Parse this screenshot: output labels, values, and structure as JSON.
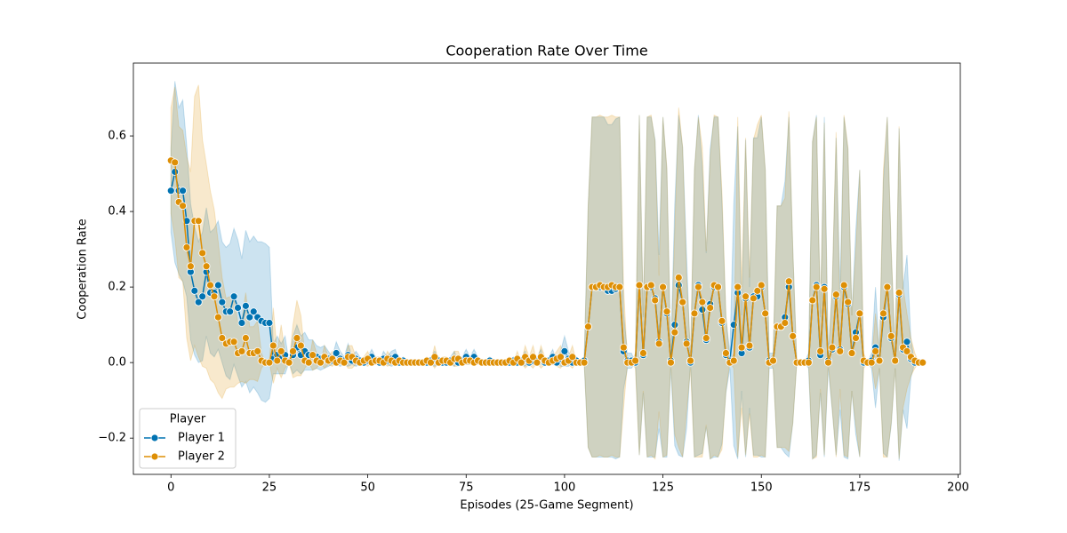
{
  "chart_data": {
    "type": "line",
    "title": "Cooperation Rate Over Time",
    "xlabel": "Episodes (25-Game Segment)",
    "ylabel": "Cooperation Rate",
    "legend_title": "Player",
    "legend": "lower left",
    "grid": false,
    "xlim": [
      -9.55,
      200.55
    ],
    "ylim": [
      -0.296,
      0.793
    ],
    "xticks": [
      0,
      25,
      50,
      75,
      100,
      125,
      150,
      175,
      200
    ],
    "yticks": [
      {
        "value": -0.2,
        "label": "−0.2"
      },
      {
        "value": 0,
        "label": "0.0"
      },
      0.2,
      0.4,
      0.6
    ],
    "x": [
      0,
      1,
      2,
      3,
      4,
      5,
      6,
      7,
      8,
      9,
      10,
      11,
      12,
      13,
      14,
      15,
      16,
      17,
      18,
      19,
      20,
      21,
      22,
      23,
      24,
      25,
      26,
      27,
      28,
      29,
      30,
      31,
      32,
      33,
      34,
      35,
      36,
      37,
      38,
      39,
      40,
      41,
      42,
      43,
      44,
      45,
      46,
      47,
      48,
      49,
      50,
      51,
      52,
      53,
      54,
      55,
      56,
      57,
      58,
      59,
      60,
      61,
      62,
      63,
      64,
      65,
      66,
      67,
      68,
      69,
      70,
      71,
      72,
      73,
      74,
      75,
      76,
      77,
      78,
      79,
      80,
      81,
      82,
      83,
      84,
      85,
      86,
      87,
      88,
      89,
      90,
      91,
      92,
      93,
      94,
      95,
      96,
      97,
      98,
      99,
      100,
      101,
      102,
      103,
      104,
      105,
      106,
      107,
      108,
      109,
      110,
      111,
      112,
      113,
      114,
      115,
      116,
      117,
      118,
      119,
      120,
      121,
      122,
      123,
      124,
      125,
      126,
      127,
      128,
      129,
      130,
      131,
      132,
      133,
      134,
      135,
      136,
      137,
      138,
      139,
      140,
      141,
      142,
      143,
      144,
      145,
      146,
      147,
      148,
      149,
      150,
      151,
      152,
      153,
      154,
      155,
      156,
      157,
      158,
      159,
      160,
      161,
      162,
      163,
      164,
      165,
      166,
      167,
      168,
      169,
      170,
      171,
      172,
      173,
      174,
      175,
      176,
      177,
      178,
      179,
      180,
      181,
      182,
      183,
      184,
      185,
      186,
      187,
      188,
      189,
      190,
      191
    ],
    "series": [
      {
        "name": "Player 1",
        "color": "#0173b2",
        "values": [
          0.455,
          0.505,
          0.455,
          0.455,
          0.375,
          0.24,
          0.19,
          0.16,
          0.175,
          0.24,
          0.185,
          0.185,
          0.205,
          0.16,
          0.135,
          0.135,
          0.175,
          0.145,
          0.105,
          0.15,
          0.12,
          0.135,
          0.12,
          0.11,
          0.105,
          0.105,
          0.01,
          0.02,
          0.01,
          0.02,
          0,
          0.02,
          0.04,
          0.02,
          0.03,
          0.02,
          0.02,
          0.015,
          0.01,
          0.015,
          0.01,
          0.005,
          0.025,
          0.01,
          0.005,
          0.02,
          0.005,
          0.01,
          0.005,
          0,
          0.005,
          0.015,
          0.005,
          0,
          0.01,
          0.005,
          0.01,
          0.015,
          0,
          0.005,
          0,
          0,
          0,
          0,
          0,
          0,
          0.005,
          0.01,
          0.005,
          0,
          0,
          0.005,
          0.01,
          0,
          0.005,
          0.015,
          0.005,
          0.015,
          0.005,
          0,
          0,
          0.005,
          0,
          0,
          0,
          0,
          0,
          0.005,
          0,
          0.005,
          0.01,
          0,
          0.005,
          0.005,
          0.015,
          0,
          0.005,
          0.015,
          0,
          0.01,
          0.03,
          0.01,
          0,
          0.005,
          0,
          0.005,
          0.095,
          0.2,
          0.2,
          0.2,
          0.2,
          0.19,
          0.19,
          0.195,
          0.2,
          0.03,
          0.005,
          0.005,
          0,
          0.205,
          0.02,
          0.2,
          0.2,
          0.17,
          0.055,
          0.2,
          0.13,
          0.005,
          0.1,
          0.205,
          0.16,
          0.055,
          0,
          0.13,
          0.205,
          0.14,
          0.06,
          0.155,
          0.2,
          0.2,
          0.105,
          0.02,
          0.005,
          0.1,
          0.185,
          0.025,
          0.17,
          0.04,
          0.175,
          0.175,
          0.2,
          0.13,
          0.005,
          0.005,
          0.095,
          0.095,
          0.12,
          0.2,
          0.07,
          0,
          0,
          0,
          0.005,
          0.165,
          0.205,
          0.02,
          0.2,
          0.005,
          0.035,
          0.175,
          0.035,
          0.2,
          0.155,
          0.025,
          0.08,
          0.13,
          0,
          0,
          0.005,
          0.04,
          0.005,
          0.12,
          0.2,
          0.065,
          0.005,
          0.18,
          0.035,
          0.055,
          0.01,
          0,
          0,
          0
        ],
        "errors": [
          0.11,
          0.24,
          0.22,
          0.24,
          0.2,
          0.18,
          0.17,
          0.16,
          0.17,
          0.17,
          0.16,
          0.17,
          0.17,
          0.16,
          0.17,
          0.18,
          0.18,
          0.18,
          0.17,
          0.2,
          0.2,
          0.2,
          0.2,
          0.21,
          0.21,
          0.2,
          0.04,
          0.05,
          0.04,
          0.05,
          0,
          0.05,
          0.06,
          0.05,
          0.05,
          0.04,
          0.04,
          0.03,
          0.03,
          0.03,
          0.02,
          0.01,
          0.03,
          0.02,
          0.01,
          0.03,
          0.01,
          0.02,
          0.01,
          0,
          0.01,
          0.02,
          0.01,
          0,
          0.02,
          0.01,
          0.02,
          0.02,
          0,
          0.01,
          0,
          0,
          0,
          0,
          0,
          0,
          0.01,
          0.02,
          0.01,
          0,
          0,
          0.01,
          0.02,
          0,
          0.01,
          0.02,
          0.01,
          0.02,
          0.01,
          0,
          0,
          0.01,
          0,
          0,
          0,
          0,
          0,
          0.01,
          0,
          0.01,
          0.02,
          0,
          0.01,
          0.01,
          0.02,
          0,
          0.01,
          0.02,
          0,
          0.02,
          0.04,
          0.02,
          0,
          0.01,
          0,
          0.01,
          0.32,
          0.45,
          0.45,
          0.45,
          0.45,
          0.44,
          0.44,
          0.45,
          0.45,
          0.1,
          0.02,
          0.02,
          0,
          0.45,
          0.1,
          0.45,
          0.45,
          0.42,
          0.23,
          0.45,
          0.38,
          0.02,
          0.32,
          0.45,
          0.41,
          0.23,
          0,
          0.38,
          0.45,
          0.38,
          0.23,
          0.41,
          0.45,
          0.45,
          0.32,
          0.1,
          0.02,
          0.32,
          0.44,
          0.1,
          0.42,
          0.16,
          0.42,
          0.42,
          0.45,
          0.38,
          0.02,
          0.02,
          0.32,
          0.32,
          0.36,
          0.45,
          0.23,
          0,
          0,
          0,
          0.02,
          0.42,
          0.45,
          0.1,
          0.45,
          0.02,
          0.16,
          0.42,
          0.16,
          0.45,
          0.41,
          0.1,
          0.27,
          0.38,
          0,
          0,
          0.02,
          0.16,
          0.02,
          0.36,
          0.45,
          0.23,
          0.02,
          0.44,
          0.16,
          0.23,
          0.05,
          0,
          0,
          0
        ]
      },
      {
        "name": "Player 2",
        "color": "#de8f05",
        "values": [
          0.535,
          0.53,
          0.425,
          0.415,
          0.305,
          0.255,
          0.375,
          0.375,
          0.29,
          0.255,
          0.205,
          0.175,
          0.12,
          0.065,
          0.05,
          0.055,
          0.055,
          0.025,
          0.03,
          0.065,
          0.025,
          0.025,
          0.03,
          0.005,
          0,
          0,
          0.045,
          0.005,
          0.03,
          0.005,
          0,
          0.03,
          0.065,
          0.045,
          0.005,
          0,
          0.02,
          0.005,
          0,
          0.015,
          0.005,
          0.01,
          0,
          0.005,
          0,
          0.015,
          0.015,
          0.005,
          0,
          0.005,
          0.01,
          0,
          0.005,
          0.005,
          0,
          0.01,
          0.005,
          0,
          0.005,
          0,
          0,
          0,
          0,
          0,
          0,
          0.005,
          0,
          0.015,
          0,
          0.005,
          0.005,
          0,
          0.01,
          0.01,
          0,
          0.005,
          0.005,
          0,
          0.005,
          0,
          0,
          0,
          0,
          0,
          0,
          0,
          0.005,
          0,
          0.01,
          0,
          0.015,
          0.005,
          0.015,
          0,
          0.015,
          0.005,
          0,
          0.005,
          0.01,
          0.015,
          0,
          0.005,
          0.015,
          0,
          0,
          0,
          0.095,
          0.2,
          0.2,
          0.205,
          0.2,
          0.2,
          0.205,
          0.2,
          0.2,
          0.04,
          0,
          0,
          0.005,
          0.205,
          0.025,
          0.2,
          0.205,
          0.165,
          0.05,
          0.2,
          0.135,
          0,
          0.08,
          0.225,
          0.16,
          0.05,
          0.005,
          0.13,
          0.2,
          0.16,
          0.065,
          0.145,
          0.205,
          0.2,
          0.11,
          0.025,
          0,
          0.005,
          0.2,
          0.04,
          0.175,
          0.045,
          0.17,
          0.19,
          0.205,
          0.13,
          0,
          0.005,
          0.095,
          0.095,
          0.105,
          0.215,
          0.07,
          0,
          0,
          0,
          0,
          0.165,
          0.2,
          0.03,
          0.195,
          0,
          0.04,
          0.18,
          0.03,
          0.205,
          0.16,
          0.025,
          0.065,
          0.13,
          0.005,
          0,
          0,
          0.03,
          0.005,
          0.13,
          0.2,
          0.07,
          0.005,
          0.185,
          0.04,
          0.03,
          0.015,
          0.005,
          0,
          0
        ],
        "errors": [
          0.14,
          0.2,
          0.2,
          0.2,
          0.24,
          0.25,
          0.33,
          0.36,
          0.3,
          0.27,
          0.25,
          0.23,
          0.2,
          0.16,
          0.12,
          0.12,
          0.12,
          0.08,
          0.08,
          0.12,
          0.07,
          0.07,
          0.08,
          0.02,
          0,
          0,
          0.1,
          0.02,
          0.07,
          0.02,
          0,
          0.07,
          0.1,
          0.08,
          0.02,
          0,
          0.04,
          0.02,
          0,
          0.03,
          0.01,
          0.02,
          0,
          0.01,
          0,
          0.03,
          0.03,
          0.01,
          0,
          0.01,
          0.02,
          0,
          0.01,
          0.01,
          0,
          0.02,
          0.01,
          0,
          0.01,
          0,
          0,
          0,
          0,
          0,
          0,
          0.01,
          0,
          0.03,
          0,
          0.01,
          0.01,
          0,
          0.02,
          0.02,
          0,
          0.01,
          0.01,
          0,
          0.01,
          0,
          0,
          0,
          0,
          0,
          0,
          0,
          0.01,
          0,
          0.02,
          0,
          0.03,
          0.01,
          0.03,
          0,
          0.03,
          0.01,
          0,
          0.01,
          0.02,
          0.03,
          0,
          0.01,
          0.03,
          0,
          0,
          0,
          0.32,
          0.45,
          0.45,
          0.45,
          0.45,
          0.45,
          0.45,
          0.45,
          0.45,
          0.16,
          0,
          0,
          0.02,
          0.45,
          0.1,
          0.45,
          0.45,
          0.42,
          0.18,
          0.45,
          0.38,
          0,
          0.27,
          0.45,
          0.41,
          0.18,
          0.02,
          0.38,
          0.45,
          0.41,
          0.23,
          0.4,
          0.45,
          0.45,
          0.34,
          0.1,
          0,
          0.02,
          0.45,
          0.16,
          0.42,
          0.18,
          0.42,
          0.44,
          0.45,
          0.38,
          0,
          0.02,
          0.32,
          0.32,
          0.33,
          0.45,
          0.23,
          0,
          0,
          0,
          0,
          0.42,
          0.45,
          0.1,
          0.44,
          0,
          0.16,
          0.43,
          0.1,
          0.45,
          0.41,
          0.1,
          0.23,
          0.38,
          0.02,
          0,
          0,
          0.1,
          0.02,
          0.38,
          0.45,
          0.23,
          0.02,
          0.44,
          0.16,
          0.1,
          0.05,
          0.02,
          0,
          0
        ]
      }
    ]
  }
}
